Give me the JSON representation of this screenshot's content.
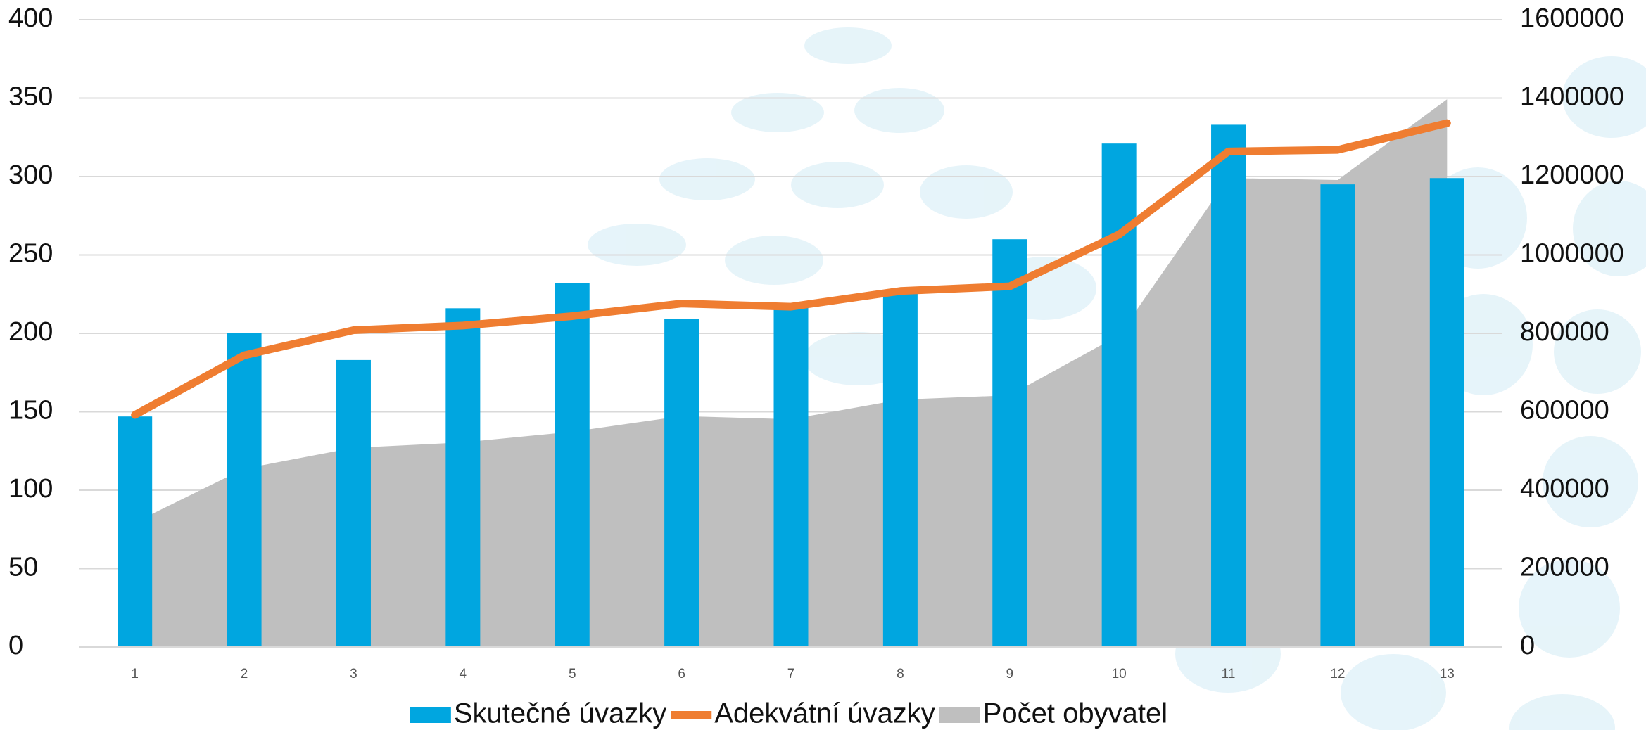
{
  "chart_data": {
    "type": "bar",
    "categories": [
      "1",
      "2",
      "3",
      "4",
      "5",
      "6",
      "7",
      "8",
      "9",
      "10",
      "11",
      "12",
      "13"
    ],
    "series": [
      {
        "name": "Skutečné úvazky",
        "type": "bar",
        "color": "#00a6e0",
        "values": [
          147,
          200,
          183,
          216,
          232,
          209,
          218,
          227,
          260,
          321,
          333,
          295,
          299
        ]
      },
      {
        "name": "Adekvátní úvazky",
        "type": "line",
        "color": "#ef7d31",
        "values": [
          148,
          186,
          202,
          205,
          211,
          219,
          217,
          227,
          230,
          263,
          316,
          317,
          334
        ]
      },
      {
        "name": "Počet obyvatel",
        "type": "area",
        "axis": "y2",
        "color": "#bfbfbf",
        "values": [
          318000,
          455000,
          508000,
          522000,
          549000,
          589000,
          581000,
          631000,
          642000,
          795000,
          1196000,
          1191000,
          1397000
        ]
      }
    ],
    "ylim": [
      0,
      400
    ],
    "yticks": [
      0,
      50,
      100,
      150,
      200,
      250,
      300,
      350,
      400
    ],
    "y2lim": [
      0,
      1600000
    ],
    "y2ticks": [
      0,
      200000,
      400000,
      600000,
      800000,
      1000000,
      1200000,
      1400000,
      1600000
    ],
    "grid": true,
    "legend": "bottom"
  }
}
